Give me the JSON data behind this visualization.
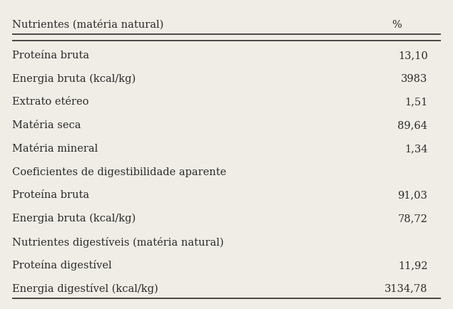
{
  "header_col1": "Nutrientes (matéria natural)",
  "header_col2": "%",
  "rows": [
    {
      "label": "Proteína bruta",
      "value": "13,10",
      "is_section": false
    },
    {
      "label": "Energia bruta (kcal/kg)",
      "value": "3983",
      "is_section": false
    },
    {
      "label": "Extrato etéreo",
      "value": "1,51",
      "is_section": false
    },
    {
      "label": "Matéria seca",
      "value": "89,64",
      "is_section": false
    },
    {
      "label": "Matéria mineral",
      "value": "1,34",
      "is_section": false
    },
    {
      "label": "Coeficientes de digestibilidade aparente",
      "value": "",
      "is_section": true
    },
    {
      "label": "Proteína bruta",
      "value": "91,03",
      "is_section": false
    },
    {
      "label": "Energia bruta (kcal/kg)",
      "value": "78,72",
      "is_section": false
    },
    {
      "label": "Nutrientes digestíveis (matéria natural)",
      "value": "",
      "is_section": true
    },
    {
      "label": "Proteína digestível",
      "value": "11,92",
      "is_section": false
    },
    {
      "label": "Energia digestível (kcal/kg)",
      "value": "3134,78",
      "is_section": false
    }
  ],
  "background_color": "#f0ede6",
  "text_color": "#2b2b2b",
  "font_size": 10.5
}
